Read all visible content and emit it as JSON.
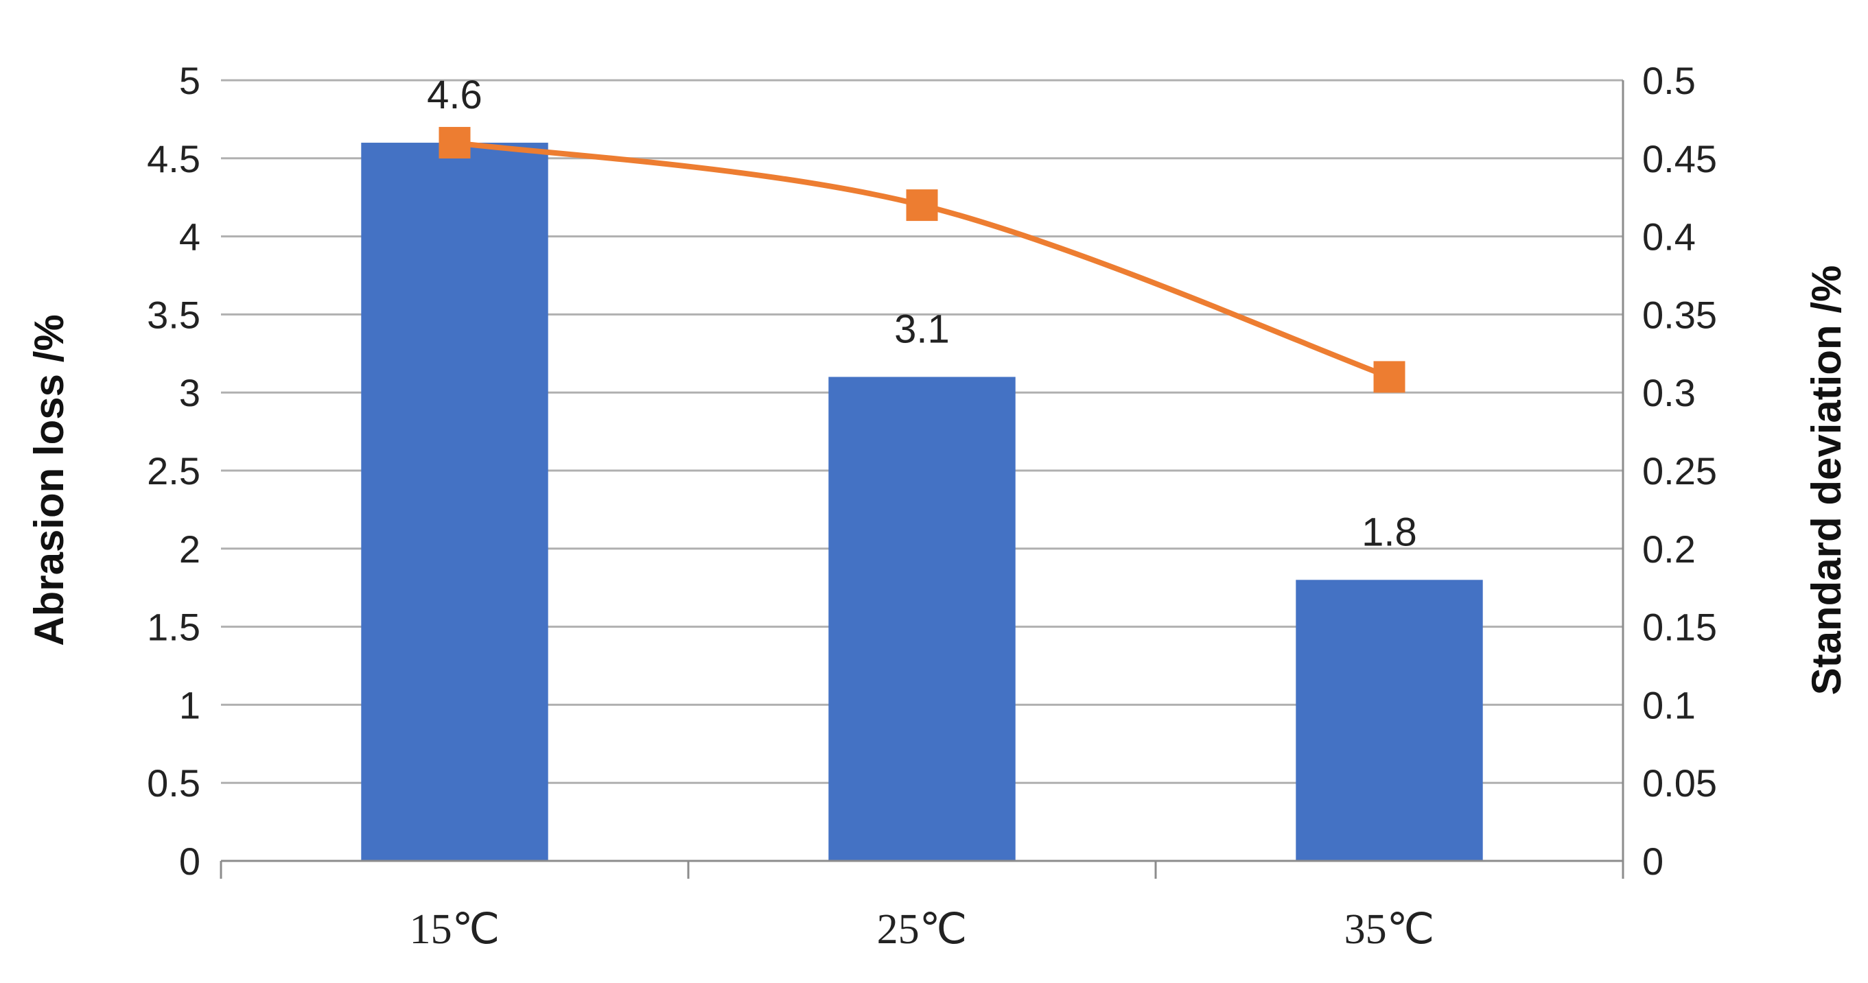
{
  "chart_data": {
    "type": "bar",
    "categories": [
      "15℃",
      "25℃",
      "35℃"
    ],
    "series": [
      {
        "name": "",
        "type": "bar",
        "axis": "left",
        "values": [
          4.6,
          3.1,
          1.8
        ],
        "labels": [
          "4.6",
          "3.1",
          "1.8"
        ],
        "color": "#4472C4"
      },
      {
        "name": "",
        "type": "line",
        "axis": "right",
        "values": [
          0.46,
          0.42,
          0.31
        ],
        "color": "#ED7D31",
        "marker": "square",
        "smooth": true
      }
    ],
    "ylabel": "Abrasion loss /%",
    "y2label": "Standard deviation /%",
    "ylim": [
      0,
      5
    ],
    "y2lim": [
      0,
      0.5
    ],
    "yticks": [
      "0",
      "0.5",
      "1",
      "1.5",
      "2",
      "2.5",
      "3",
      "3.5",
      "4",
      "4.5",
      "5"
    ],
    "y2ticks": [
      "0",
      "0.05",
      "0.1",
      "0.15",
      "0.2",
      "0.25",
      "0.3",
      "0.35",
      "0.4",
      "0.45",
      "0.5"
    ],
    "grid": true,
    "legend": "none"
  }
}
